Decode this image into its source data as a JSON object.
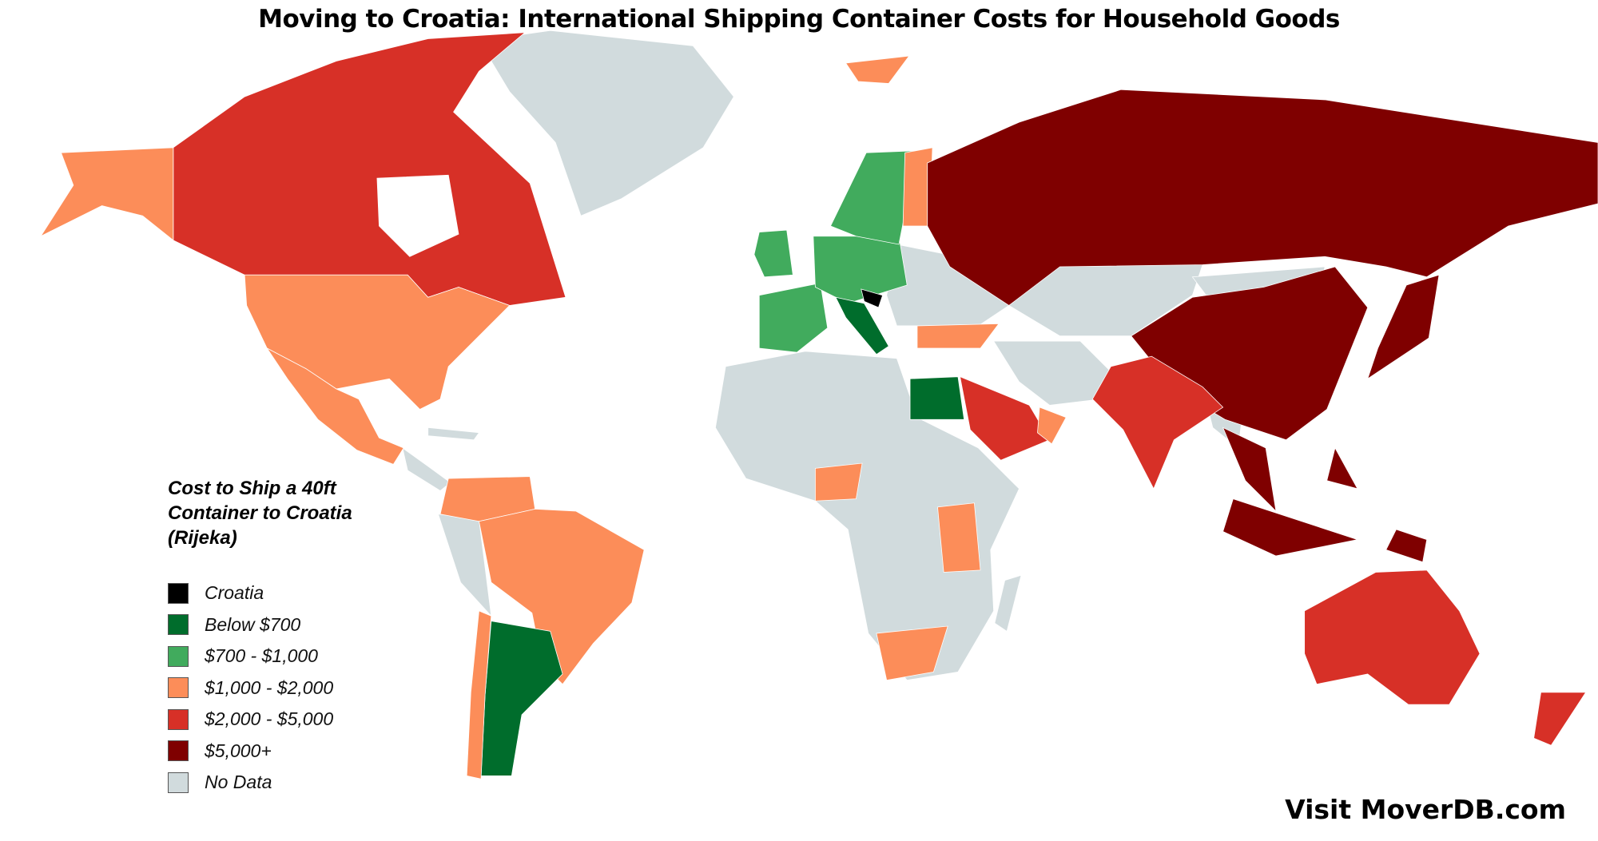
{
  "title": "Moving to Croatia: International Shipping Container Costs for Household Goods",
  "legend": {
    "title": "Cost to Ship a 40ft\nContainer to Croatia\n(Rijeka)",
    "items": [
      {
        "label": "Croatia",
        "color": "#000000",
        "key": "croatia"
      },
      {
        "label": "Below $700",
        "color": "#006d2c",
        "key": "below700"
      },
      {
        "label": "$700 - $1,000",
        "color": "#41ab5d",
        "key": "700to1000"
      },
      {
        "label": "$1,000 - $2,000",
        "color": "#fc8d59",
        "key": "1000to2000"
      },
      {
        "label": "$2,000 - $5,000",
        "color": "#d73027",
        "key": "2000to5000"
      },
      {
        "label": "$5,000+",
        "color": "#7f0000",
        "key": "5000plus"
      },
      {
        "label": "No Data",
        "color": "#d1dbdd",
        "key": "nodata"
      }
    ]
  },
  "regions": [
    {
      "name": "Croatia",
      "category": "croatia"
    },
    {
      "name": "Italy",
      "category": "below700"
    },
    {
      "name": "Egypt",
      "category": "below700"
    },
    {
      "name": "Argentina",
      "category": "below700"
    },
    {
      "name": "United Kingdom",
      "category": "700to1000"
    },
    {
      "name": "France",
      "category": "700to1000"
    },
    {
      "name": "Spain",
      "category": "700to1000"
    },
    {
      "name": "Germany",
      "category": "700to1000"
    },
    {
      "name": "Sweden",
      "category": "700to1000"
    },
    {
      "name": "United States",
      "category": "1000to2000"
    },
    {
      "name": "Alaska",
      "category": "1000to2000"
    },
    {
      "name": "Mexico",
      "category": "1000to2000"
    },
    {
      "name": "Brazil",
      "category": "1000to2000"
    },
    {
      "name": "Colombia",
      "category": "1000to2000"
    },
    {
      "name": "Chile",
      "category": "1000to2000"
    },
    {
      "name": "Finland",
      "category": "1000to2000"
    },
    {
      "name": "Turkey",
      "category": "1000to2000"
    },
    {
      "name": "Oman",
      "category": "1000to2000"
    },
    {
      "name": "Nigeria",
      "category": "1000to2000"
    },
    {
      "name": "Kenya",
      "category": "1000to2000"
    },
    {
      "name": "South Africa",
      "category": "1000to2000"
    },
    {
      "name": "Svalbard",
      "category": "1000to2000"
    },
    {
      "name": "Canada",
      "category": "2000to5000"
    },
    {
      "name": "Saudi Arabia",
      "category": "2000to5000"
    },
    {
      "name": "India",
      "category": "2000to5000"
    },
    {
      "name": "Australia",
      "category": "2000to5000"
    },
    {
      "name": "New Zealand",
      "category": "2000to5000"
    },
    {
      "name": "Russia",
      "category": "5000plus"
    },
    {
      "name": "China",
      "category": "5000plus"
    },
    {
      "name": "Japan",
      "category": "5000plus"
    },
    {
      "name": "Southeast Asia",
      "category": "5000plus"
    },
    {
      "name": "Indonesia",
      "category": "5000plus"
    },
    {
      "name": "Philippines",
      "category": "5000plus"
    },
    {
      "name": "Papua New Guinea",
      "category": "5000plus"
    }
  ],
  "footer": "Visit MoverDB.com"
}
